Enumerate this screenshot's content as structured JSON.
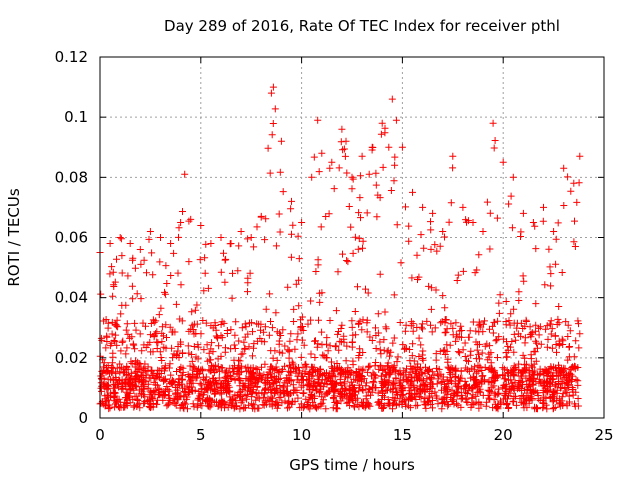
{
  "chart_data": {
    "type": "scatter",
    "title": "Day 289 of 2016, Rate Of TEC Index for receiver pthl",
    "xlabel": "GPS time / hours",
    "ylabel": "ROTI / TECUs",
    "xlim": [
      0,
      25
    ],
    "ylim": [
      0,
      0.12
    ],
    "x_ticks": [
      0,
      5,
      10,
      15,
      20,
      25
    ],
    "y_ticks": [
      0,
      0.02,
      0.04,
      0.06,
      0.08,
      0.1,
      0.12
    ],
    "x_tick_labels": [
      "0",
      "5",
      "10",
      "15",
      "20",
      "25"
    ],
    "y_tick_labels": [
      "0",
      "0.02",
      "0.04",
      "0.06",
      "0.08",
      "0.1",
      "0.12"
    ],
    "grid": true,
    "marker": "+",
    "color": "#ff0000",
    "series": [
      {
        "name": "ROTI",
        "points_note": "dense scatter of ~thousands of samples; representative envelope",
        "envelope": {
          "x": [
            0,
            0.5,
            1,
            1.5,
            2,
            2.5,
            3,
            3.5,
            4,
            4.2,
            4.5,
            5,
            5.5,
            6,
            6.5,
            7,
            7.5,
            8,
            8.5,
            8.6,
            9,
            9.5,
            10,
            10.5,
            10.8,
            11,
            11.5,
            12,
            12.2,
            12.5,
            13,
            13.5,
            14,
            14.5,
            14.7,
            15,
            15.5,
            16,
            16.5,
            17,
            17.5,
            18,
            18.5,
            19,
            19.5,
            20,
            20.5,
            21,
            21.5,
            22,
            22.5,
            23,
            23.5,
            23.8
          ],
          "y_max": [
            0.055,
            0.058,
            0.06,
            0.058,
            0.056,
            0.062,
            0.06,
            0.058,
            0.065,
            0.081,
            0.066,
            0.064,
            0.058,
            0.06,
            0.058,
            0.062,
            0.06,
            0.067,
            0.108,
            0.11,
            0.092,
            0.072,
            0.065,
            0.08,
            0.099,
            0.088,
            0.085,
            0.096,
            0.092,
            0.08,
            0.087,
            0.09,
            0.098,
            0.106,
            0.099,
            0.09,
            0.075,
            0.07,
            0.068,
            0.062,
            0.087,
            0.07,
            0.065,
            0.062,
            0.098,
            0.085,
            0.08,
            0.068,
            0.065,
            0.07,
            0.062,
            0.083,
            0.078,
            0.087
          ],
          "y_typical": 0.01
        }
      }
    ]
  }
}
